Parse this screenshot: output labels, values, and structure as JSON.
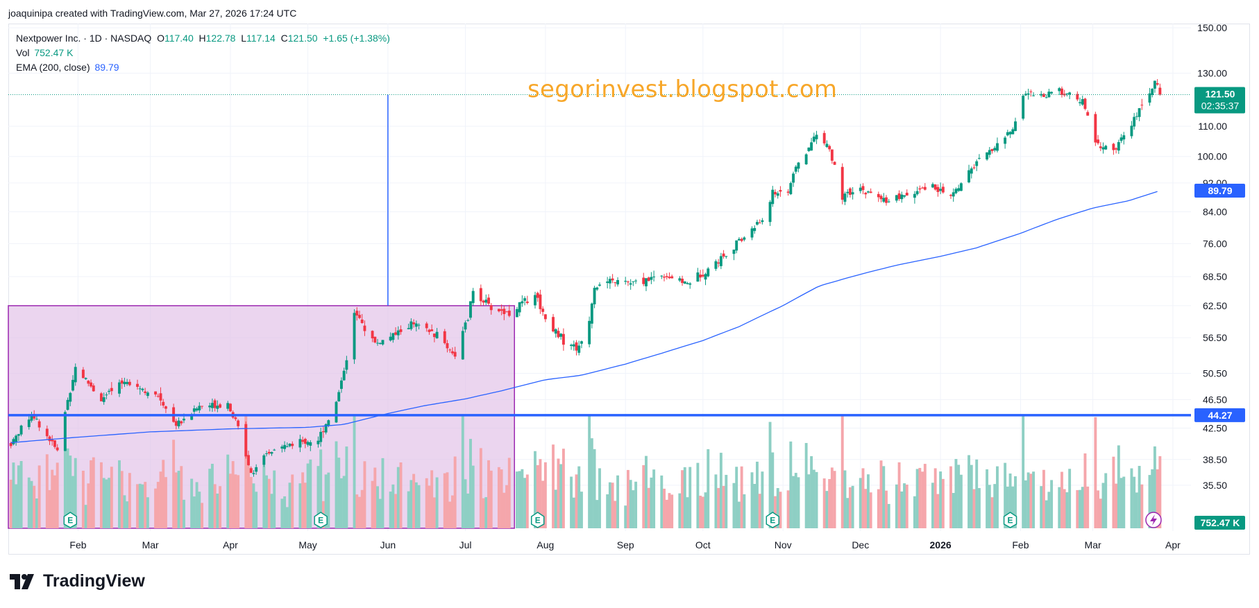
{
  "header": {
    "text": "joaquinipa created with TradingView.com, Mar 27, 2026 17:24 UTC"
  },
  "legend": {
    "symbol": "Nextpower Inc. · 1D · NASDAQ",
    "o_label": "O",
    "o": "117.40",
    "h_label": "H",
    "h": "122.78",
    "l_label": "L",
    "l": "117.14",
    "c_label": "C",
    "c": "121.50",
    "change": "+1.65 (+1.38%)",
    "vol_label": "Vol",
    "vol": "752.47 K",
    "ema_label": "EMA (200, close)",
    "ema": "89.79"
  },
  "watermark": "segorinvest.blogspot.com",
  "brand": {
    "name": "TradingView"
  },
  "colors": {
    "up": "#089981",
    "down": "#f23645",
    "ema": "#2962ff",
    "range_box": "#9c27b0",
    "range_fill": "#e1bee7",
    "hline": "#2962ff",
    "watermark": "#f7a72a",
    "vol_up": "#8ecfc4",
    "vol_down": "#f5a6ab"
  },
  "chart_data": {
    "type": "candlestick",
    "symbol": "Nextpower Inc.",
    "interval": "1D",
    "exchange": "NASDAQ",
    "y_scale": "log",
    "ylim": [
      31,
      152
    ],
    "y_ticks": [
      "150.00",
      "130.00",
      "110.00",
      "100.00",
      "92.00",
      "84.00",
      "76.00",
      "68.50",
      "62.50",
      "56.50",
      "50.50",
      "46.50",
      "42.50",
      "38.50",
      "35.50"
    ],
    "x_ticks": [
      {
        "label": "Feb",
        "date": "2025-02-01",
        "bold": false
      },
      {
        "label": "Mar",
        "date": "2025-03-01",
        "bold": false
      },
      {
        "label": "Apr",
        "date": "2025-04-01",
        "bold": false
      },
      {
        "label": "May",
        "date": "2025-05-01",
        "bold": false
      },
      {
        "label": "Jun",
        "date": "2025-06-01",
        "bold": false
      },
      {
        "label": "Jul",
        "date": "2025-07-01",
        "bold": false
      },
      {
        "label": "Aug",
        "date": "2025-08-01",
        "bold": false
      },
      {
        "label": "Sep",
        "date": "2025-09-01",
        "bold": false
      },
      {
        "label": "Oct",
        "date": "2025-10-01",
        "bold": false
      },
      {
        "label": "Nov",
        "date": "2025-11-01",
        "bold": false
      },
      {
        "label": "Dec",
        "date": "2025-12-01",
        "bold": false
      },
      {
        "label": "2026",
        "date": "2026-01-01",
        "bold": true
      },
      {
        "label": "Feb",
        "date": "2026-02-01",
        "bold": false
      },
      {
        "label": "Mar",
        "date": "2026-03-01",
        "bold": false
      },
      {
        "label": "Apr",
        "date": "2026-04-01",
        "bold": false
      }
    ],
    "x_range": [
      "2025-01-05",
      "2026-04-08"
    ],
    "price_path": [
      [
        "2025-01-06",
        40.5
      ],
      [
        "2025-01-14",
        44.5
      ],
      [
        "2025-01-24",
        39.5
      ],
      [
        "2025-01-31",
        51.5
      ],
      [
        "2025-02-10",
        46.5
      ],
      [
        "2025-02-20",
        49.5
      ],
      [
        "2025-03-05",
        46.5
      ],
      [
        "2025-03-11",
        43.0
      ],
      [
        "2025-03-20",
        45.5
      ],
      [
        "2025-03-31",
        46.0
      ],
      [
        "2025-04-04",
        42.5
      ],
      [
        "2025-04-09",
        37.0
      ],
      [
        "2025-04-17",
        39.5
      ],
      [
        "2025-04-25",
        40.5
      ],
      [
        "2025-05-05",
        41.0
      ],
      [
        "2025-05-12",
        46.0
      ],
      [
        "2025-05-16",
        53.0
      ],
      [
        "2025-05-19",
        61.0
      ],
      [
        "2025-05-27",
        55.5
      ],
      [
        "2025-06-02",
        56.5
      ],
      [
        "2025-06-10",
        59.0
      ],
      [
        "2025-06-20",
        57.0
      ],
      [
        "2025-06-27",
        53.5
      ],
      [
        "2025-07-02",
        60.0
      ],
      [
        "2025-07-04",
        65.5
      ],
      [
        "2025-07-11",
        62.0
      ],
      [
        "2025-07-18",
        61.0
      ],
      [
        "2025-07-28",
        65.0
      ],
      [
        "2025-08-01",
        60.0
      ],
      [
        "2025-08-08",
        56.0
      ],
      [
        "2025-08-14",
        54.5
      ],
      [
        "2025-08-18",
        60.0
      ],
      [
        "2025-08-20",
        66.5
      ],
      [
        "2025-08-28",
        67.5
      ],
      [
        "2025-09-05",
        67.0
      ],
      [
        "2025-09-15",
        69.0
      ],
      [
        "2025-09-25",
        67.0
      ],
      [
        "2025-10-06",
        71.5
      ],
      [
        "2025-10-16",
        77.0
      ],
      [
        "2025-10-24",
        82.0
      ],
      [
        "2025-10-28",
        89.0
      ],
      [
        "2025-11-03",
        90.0
      ],
      [
        "2025-11-07",
        98.0
      ],
      [
        "2025-11-10",
        101.0
      ],
      [
        "2025-11-14",
        108.0
      ],
      [
        "2025-11-19",
        102.0
      ],
      [
        "2025-11-24",
        88.0
      ],
      [
        "2025-12-01",
        90.0
      ],
      [
        "2025-12-10",
        87.0
      ],
      [
        "2025-12-18",
        88.0
      ],
      [
        "2025-12-29",
        91.0
      ],
      [
        "2026-01-05",
        88.0
      ],
      [
        "2026-01-14",
        97.0
      ],
      [
        "2026-01-22",
        103.0
      ],
      [
        "2026-01-29",
        109.0
      ],
      [
        "2026-02-02",
        122.0
      ],
      [
        "2026-02-10",
        121.0
      ],
      [
        "2026-02-16",
        123.0
      ],
      [
        "2026-02-25",
        119.0
      ],
      [
        "2026-03-02",
        104.0
      ],
      [
        "2026-03-09",
        102.0
      ],
      [
        "2026-03-16",
        110.0
      ],
      [
        "2026-03-20",
        119.0
      ],
      [
        "2026-03-23",
        122.0
      ],
      [
        "2026-03-25",
        128.0
      ],
      [
        "2026-03-27",
        121.5
      ]
    ],
    "ema_path": [
      [
        "2025-01-06",
        40.6
      ],
      [
        "2025-02-01",
        41.3
      ],
      [
        "2025-03-01",
        42.0
      ],
      [
        "2025-04-01",
        42.4
      ],
      [
        "2025-05-01",
        42.6
      ],
      [
        "2025-05-15",
        43.0
      ],
      [
        "2025-06-01",
        44.5
      ],
      [
        "2025-06-15",
        45.6
      ],
      [
        "2025-07-01",
        46.6
      ],
      [
        "2025-07-15",
        47.8
      ],
      [
        "2025-08-01",
        49.5
      ],
      [
        "2025-08-15",
        50.2
      ],
      [
        "2025-09-01",
        52.0
      ],
      [
        "2025-09-15",
        53.8
      ],
      [
        "2025-10-01",
        56.0
      ],
      [
        "2025-10-15",
        58.5
      ],
      [
        "2025-11-01",
        62.5
      ],
      [
        "2025-11-15",
        66.5
      ],
      [
        "2025-12-01",
        69.0
      ],
      [
        "2025-12-15",
        71.0
      ],
      [
        "2026-01-01",
        73.0
      ],
      [
        "2026-01-15",
        75.0
      ],
      [
        "2026-02-01",
        78.5
      ],
      [
        "2026-02-15",
        82.0
      ],
      [
        "2026-03-01",
        85.0
      ],
      [
        "2026-03-15",
        87.0
      ],
      [
        "2026-03-27",
        89.79
      ]
    ],
    "last": {
      "price": "121.50",
      "countdown": "02:35:37",
      "ema": "89.79",
      "volume": "752.47 K"
    },
    "horizontal_line": {
      "price": 44.27,
      "label": "44.27"
    },
    "range_box": {
      "start": "2025-01-05",
      "end": "2025-07-20",
      "top": 62.5,
      "bottom": 31
    },
    "vertical_line": {
      "date": "2025-06-01",
      "top": 121.5,
      "bottom": 62.5
    },
    "earnings_dates": [
      "2025-01-29",
      "2025-05-06",
      "2025-07-29",
      "2025-10-28",
      "2026-01-28"
    ],
    "earnings_label": "E",
    "volume": {
      "max_display": 1.0
    }
  }
}
